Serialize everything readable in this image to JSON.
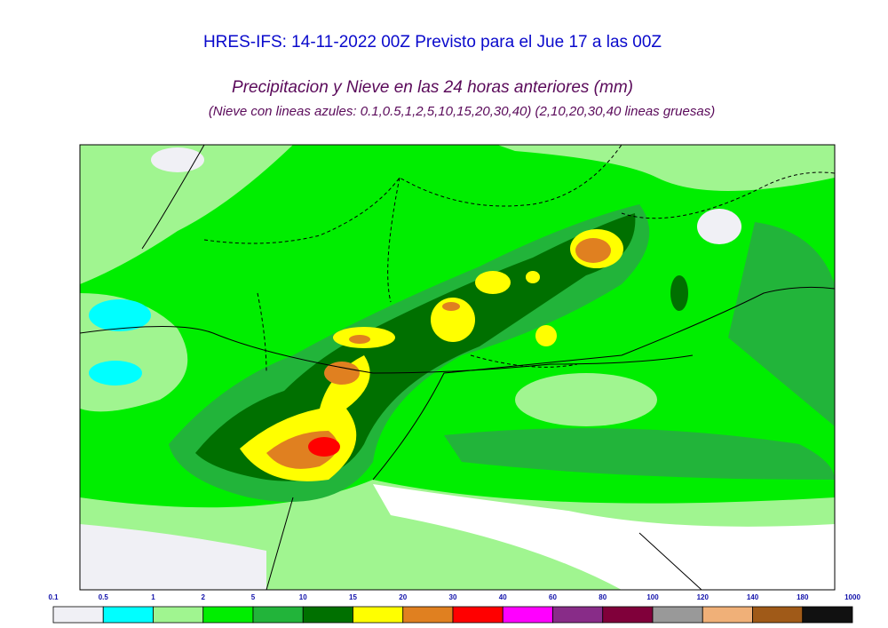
{
  "header": {
    "title": "HRES-IFS: 14-11-2022 00Z Previsto para el Jue 17 a las 00Z",
    "subtitle": "Precipitacion y Nieve en las 24 horas anteriores (mm)",
    "note": "(Nieve con lineas azules: 0.1,0.5,1,2,5,10,15,20,30,40)  (2,10,20,30,40 lineas gruesas)"
  },
  "legend": {
    "levels": [
      0.1,
      0.5,
      1,
      2,
      5,
      10,
      15,
      20,
      30,
      40,
      60,
      80,
      100,
      120,
      140,
      180,
      1000
    ],
    "colors": [
      "#f0f0f5",
      "#00ffff",
      "#a0f590",
      "#00ee00",
      "#22b43a",
      "#007000",
      "#ffff00",
      "#e08020",
      "#ff0000",
      "#ff00ff",
      "#882c88",
      "#80003a",
      "#999999",
      "#f0b078",
      "#a05a18",
      "#111111"
    ]
  }
}
